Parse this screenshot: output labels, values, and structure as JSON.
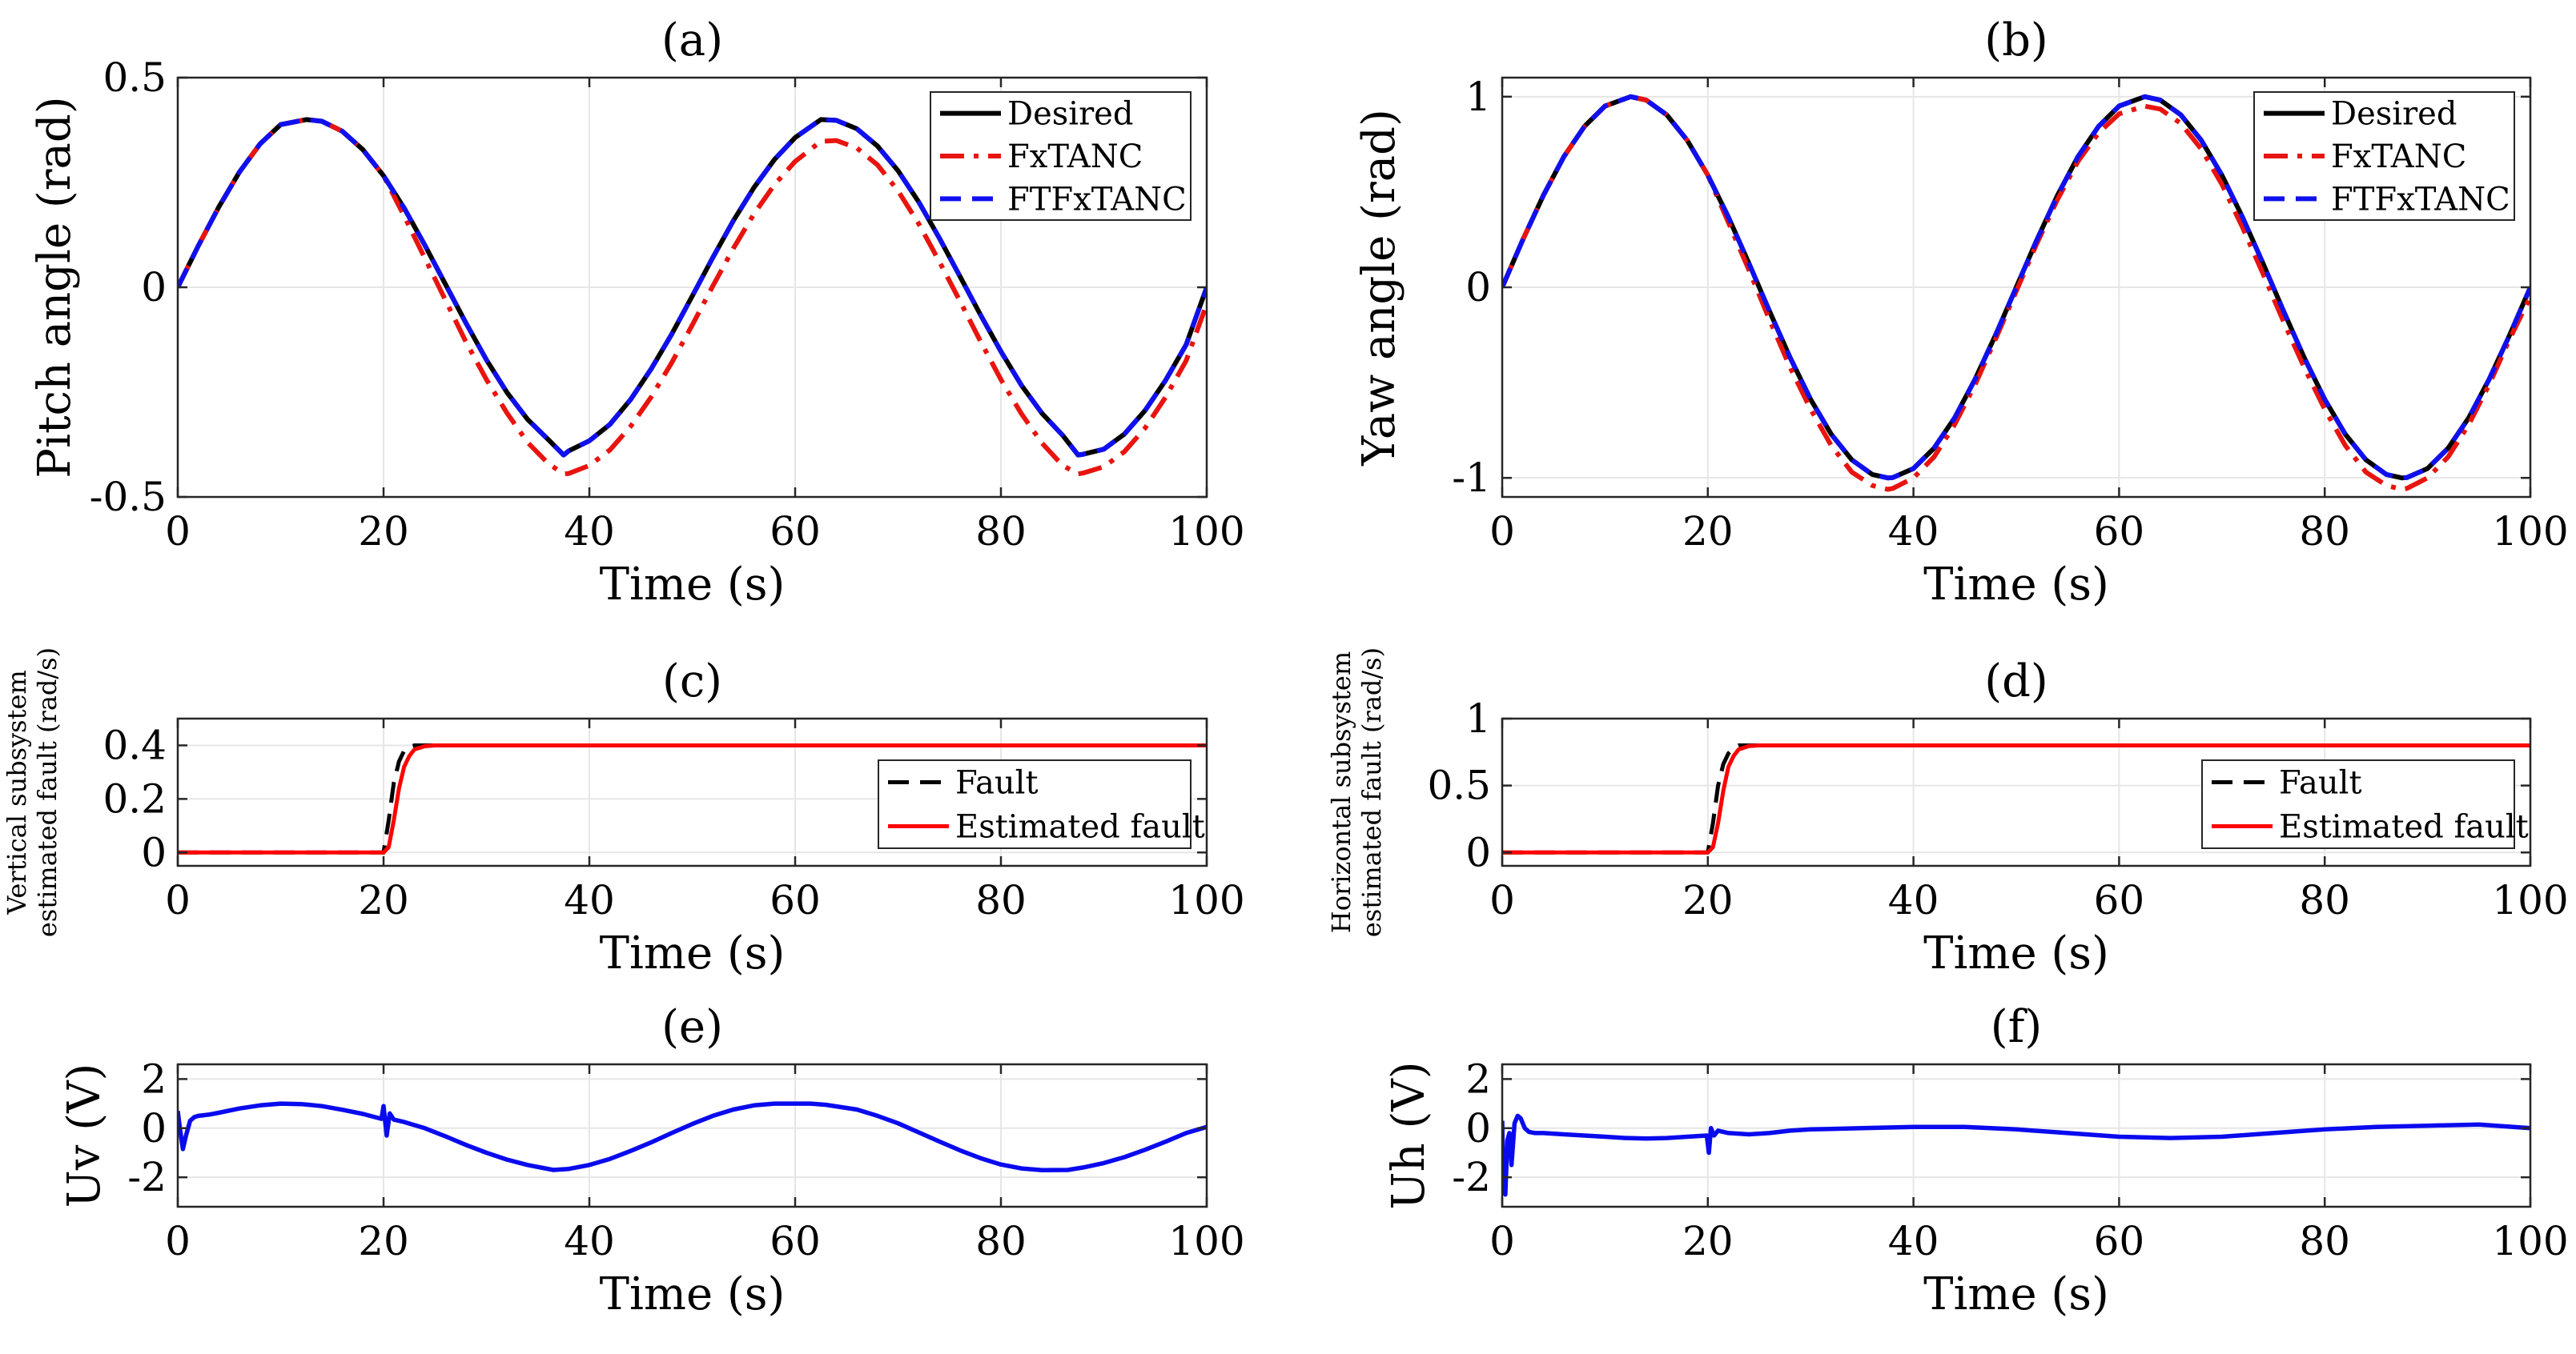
{
  "chart_data": [
    {
      "id": "a",
      "type": "line",
      "title": "(a)",
      "xlabel": "Time (s)",
      "ylabel": "Pitch angle (rad)",
      "xlim": [
        0,
        100
      ],
      "ylim": [
        -0.5,
        0.5
      ],
      "xticks": [
        0,
        20,
        40,
        60,
        80,
        100
      ],
      "xtick_labels": [
        "0",
        "20",
        "40",
        "60",
        "80",
        "100"
      ],
      "yticks": [
        -0.5,
        0,
        0.5
      ],
      "ytick_labels": [
        "-0.5",
        "0",
        "0.5"
      ],
      "grid": true,
      "legend_position": "top-right",
      "x": [
        0,
        2,
        4,
        6,
        8,
        10,
        12.5,
        14,
        16,
        18,
        20,
        22,
        24,
        26,
        28,
        30,
        32,
        34,
        36,
        37.5,
        38,
        40,
        42,
        44,
        46,
        48,
        50,
        52,
        54,
        56,
        58,
        60,
        62.5,
        64,
        66,
        68,
        70,
        72,
        74,
        76,
        78,
        80,
        82,
        84,
        86,
        87.5,
        88,
        90,
        92,
        94,
        96,
        98,
        100
      ],
      "series": [
        {
          "name": "Desired",
          "color": "#000000",
          "dash": "solid",
          "values": [
            0.0,
            0.099,
            0.192,
            0.275,
            0.342,
            0.388,
            0.4,
            0.396,
            0.372,
            0.328,
            0.266,
            0.189,
            0.101,
            0.008,
            -0.085,
            -0.173,
            -0.251,
            -0.315,
            -0.363,
            -0.4,
            -0.39,
            -0.366,
            -0.327,
            -0.268,
            -0.195,
            -0.112,
            -0.021,
            0.071,
            0.159,
            0.238,
            0.305,
            0.357,
            0.4,
            0.398,
            0.378,
            0.337,
            0.278,
            0.204,
            0.118,
            0.027,
            -0.065,
            -0.153,
            -0.234,
            -0.301,
            -0.353,
            -0.4,
            -0.398,
            -0.386,
            -0.35,
            -0.294,
            -0.222,
            -0.137,
            -0.0
          ]
        },
        {
          "name": "FxTANC",
          "color": "#e8140f",
          "dash": "dashdot",
          "values": [
            0.0,
            0.099,
            0.192,
            0.275,
            0.342,
            0.388,
            0.4,
            0.396,
            0.372,
            0.328,
            0.266,
            0.17,
            0.07,
            -0.03,
            -0.13,
            -0.22,
            -0.3,
            -0.37,
            -0.42,
            -0.445,
            -0.444,
            -0.425,
            -0.388,
            -0.332,
            -0.262,
            -0.18,
            -0.09,
            0.003,
            0.093,
            0.175,
            0.245,
            0.3,
            0.348,
            0.35,
            0.332,
            0.292,
            0.23,
            0.152,
            0.062,
            -0.032,
            -0.128,
            -0.22,
            -0.302,
            -0.372,
            -0.425,
            -0.445,
            -0.443,
            -0.428,
            -0.392,
            -0.336,
            -0.262,
            -0.175,
            -0.04
          ]
        },
        {
          "name": "FTFxTANC",
          "color": "#1010ee",
          "dash": "dashed",
          "values": [
            0.0,
            0.099,
            0.192,
            0.275,
            0.342,
            0.388,
            0.4,
            0.396,
            0.372,
            0.328,
            0.266,
            0.189,
            0.101,
            0.008,
            -0.085,
            -0.173,
            -0.251,
            -0.315,
            -0.363,
            -0.4,
            -0.39,
            -0.366,
            -0.327,
            -0.268,
            -0.195,
            -0.112,
            -0.021,
            0.071,
            0.159,
            0.238,
            0.305,
            0.357,
            0.4,
            0.398,
            0.378,
            0.337,
            0.278,
            0.204,
            0.118,
            0.027,
            -0.065,
            -0.153,
            -0.234,
            -0.301,
            -0.353,
            -0.4,
            -0.398,
            -0.386,
            -0.35,
            -0.294,
            -0.222,
            -0.137,
            -0.0
          ]
        }
      ]
    },
    {
      "id": "b",
      "type": "line",
      "title": "(b)",
      "xlabel": "Time (s)",
      "ylabel": "Yaw angle (rad)",
      "xlim": [
        0,
        100
      ],
      "ylim": [
        -1.1,
        1.1
      ],
      "xticks": [
        0,
        20,
        40,
        60,
        80,
        100
      ],
      "xtick_labels": [
        "0",
        "20",
        "40",
        "60",
        "80",
        "100"
      ],
      "yticks": [
        -1,
        0,
        1
      ],
      "ytick_labels": [
        "-1",
        "0",
        "1"
      ],
      "grid": true,
      "legend_position": "top-right",
      "x": [
        0,
        2,
        4,
        6,
        8,
        10,
        12.5,
        14,
        16,
        18,
        20,
        22,
        24,
        26,
        28,
        30,
        32,
        34,
        36,
        37.5,
        38,
        40,
        42,
        44,
        46,
        48,
        50,
        52,
        54,
        56,
        58,
        60,
        62.5,
        64,
        66,
        68,
        70,
        72,
        74,
        76,
        78,
        80,
        82,
        84,
        86,
        87.5,
        88,
        90,
        92,
        94,
        96,
        98,
        100
      ],
      "series": [
        {
          "name": "Desired",
          "color": "#000000",
          "dash": "solid",
          "values": [
            0.0,
            0.249,
            0.482,
            0.685,
            0.844,
            0.951,
            1.0,
            0.982,
            0.905,
            0.771,
            0.588,
            0.368,
            0.125,
            -0.125,
            -0.368,
            -0.588,
            -0.771,
            -0.905,
            -0.982,
            -1.0,
            -0.998,
            -0.951,
            -0.844,
            -0.685,
            -0.482,
            -0.249,
            0.0,
            0.249,
            0.482,
            0.685,
            0.844,
            0.951,
            1.0,
            0.982,
            0.905,
            0.771,
            0.588,
            0.368,
            0.125,
            -0.125,
            -0.368,
            -0.588,
            -0.771,
            -0.905,
            -0.982,
            -1.0,
            -0.998,
            -0.951,
            -0.844,
            -0.685,
            -0.482,
            -0.249,
            0.0
          ]
        },
        {
          "name": "FxTANC",
          "color": "#e8140f",
          "dash": "dashdot",
          "values": [
            0.0,
            0.249,
            0.482,
            0.685,
            0.844,
            0.951,
            1.0,
            0.982,
            0.905,
            0.771,
            0.588,
            0.34,
            0.09,
            -0.17,
            -0.42,
            -0.64,
            -0.83,
            -0.97,
            -1.04,
            -1.06,
            -1.055,
            -1.0,
            -0.89,
            -0.72,
            -0.51,
            -0.27,
            -0.02,
            0.23,
            0.46,
            0.66,
            0.81,
            0.91,
            0.95,
            0.935,
            0.86,
            0.725,
            0.54,
            0.315,
            0.07,
            -0.18,
            -0.42,
            -0.64,
            -0.83,
            -0.97,
            -1.04,
            -1.06,
            -1.055,
            -1.0,
            -0.89,
            -0.72,
            -0.51,
            -0.27,
            -0.05
          ]
        },
        {
          "name": "FTFxTANC",
          "color": "#1010ee",
          "dash": "dashed",
          "values": [
            0.0,
            0.249,
            0.482,
            0.685,
            0.844,
            0.951,
            1.0,
            0.982,
            0.905,
            0.771,
            0.588,
            0.368,
            0.125,
            -0.125,
            -0.368,
            -0.588,
            -0.771,
            -0.905,
            -0.982,
            -1.0,
            -0.998,
            -0.951,
            -0.844,
            -0.685,
            -0.482,
            -0.249,
            0.0,
            0.249,
            0.482,
            0.685,
            0.844,
            0.951,
            1.0,
            0.982,
            0.905,
            0.771,
            0.588,
            0.368,
            0.125,
            -0.125,
            -0.368,
            -0.588,
            -0.771,
            -0.905,
            -0.982,
            -1.0,
            -0.998,
            -0.951,
            -0.844,
            -0.685,
            -0.482,
            -0.249,
            0.0
          ]
        }
      ]
    },
    {
      "id": "c",
      "type": "line",
      "title": "(c)",
      "xlabel": "Time (s)",
      "ylabel_lines": [
        "Vertical subsystem",
        "estimated fault (rad/s)"
      ],
      "xlim": [
        0,
        100
      ],
      "ylim": [
        -0.05,
        0.5
      ],
      "xticks": [
        0,
        20,
        40,
        60,
        80,
        100
      ],
      "xtick_labels": [
        "0",
        "20",
        "40",
        "60",
        "80",
        "100"
      ],
      "yticks": [
        0,
        0.2,
        0.4
      ],
      "ytick_labels": [
        "0",
        "0.2",
        "0.4"
      ],
      "grid": true,
      "legend_position": "bottom-right",
      "series": [
        {
          "name": "Fault",
          "color": "#000000",
          "dash": "dashed",
          "x": [
            0,
            20,
            20.5,
            21,
            21.5,
            22,
            22.5,
            23,
            100
          ],
          "values": [
            0,
            0,
            0.12,
            0.26,
            0.34,
            0.38,
            0.395,
            0.4,
            0.4
          ]
        },
        {
          "name": "Estimated fault",
          "color": "#ff0000",
          "dash": "solid",
          "x": [
            0,
            20,
            20.5,
            21,
            21.5,
            22,
            22.5,
            23,
            24,
            25,
            100
          ],
          "values": [
            0,
            0,
            0.02,
            0.12,
            0.24,
            0.32,
            0.36,
            0.385,
            0.397,
            0.4,
            0.4
          ]
        }
      ]
    },
    {
      "id": "d",
      "type": "line",
      "title": "(d)",
      "xlabel": "Time (s)",
      "ylabel_lines": [
        "Horizontal subsystem",
        "estimated fault (rad/s)"
      ],
      "xlim": [
        0,
        100
      ],
      "ylim": [
        -0.1,
        1.0
      ],
      "xticks": [
        0,
        20,
        40,
        60,
        80,
        100
      ],
      "xtick_labels": [
        "0",
        "20",
        "40",
        "60",
        "80",
        "100"
      ],
      "yticks": [
        0,
        0.5,
        1
      ],
      "ytick_labels": [
        "0",
        "0.5",
        "1"
      ],
      "grid": true,
      "legend_position": "bottom-right",
      "series": [
        {
          "name": "Fault",
          "color": "#000000",
          "dash": "dashed",
          "x": [
            0,
            20,
            20.5,
            21,
            21.5,
            22,
            22.5,
            23,
            100
          ],
          "values": [
            0,
            0,
            0.22,
            0.5,
            0.66,
            0.74,
            0.78,
            0.8,
            0.8
          ]
        },
        {
          "name": "Estimated fault",
          "color": "#ff0000",
          "dash": "solid",
          "x": [
            0,
            20,
            20.5,
            21,
            21.5,
            22,
            22.5,
            23,
            24,
            25,
            100
          ],
          "values": [
            0,
            0,
            0.04,
            0.22,
            0.46,
            0.64,
            0.72,
            0.77,
            0.795,
            0.8,
            0.8
          ]
        }
      ]
    },
    {
      "id": "e",
      "type": "line",
      "title": "(e)",
      "xlabel": "Time (s)",
      "ylabel": "Uv (V)",
      "xlim": [
        0,
        100
      ],
      "ylim": [
        -3.2,
        2.6
      ],
      "xticks": [
        0,
        20,
        40,
        60,
        80,
        100
      ],
      "xtick_labels": [
        "0",
        "20",
        "40",
        "60",
        "80",
        "100"
      ],
      "yticks": [
        -2,
        0,
        2
      ],
      "ytick_labels": [
        "-2",
        "0",
        "2"
      ],
      "grid": true,
      "series": [
        {
          "name": "Uv",
          "color": "#0a0aee",
          "dash": "solid",
          "x": [
            0,
            0.2,
            0.5,
            0.8,
            1.2,
            1.6,
            2.0,
            3,
            4,
            6,
            8,
            10,
            12,
            14,
            16,
            18,
            19.8,
            20.0,
            20.3,
            20.6,
            21,
            22,
            24,
            26,
            28,
            30,
            32,
            34,
            36.5,
            38,
            40,
            42,
            44,
            46,
            48,
            50,
            52,
            54,
            56,
            58,
            60,
            61.5,
            63,
            66,
            68,
            70,
            72,
            74,
            76,
            78,
            80,
            82,
            84,
            86.5,
            88,
            90,
            92,
            94,
            96,
            98,
            100
          ],
          "values": [
            0.7,
            0.0,
            -0.85,
            -0.3,
            0.3,
            0.45,
            0.5,
            0.55,
            0.63,
            0.8,
            0.93,
            1.0,
            0.98,
            0.9,
            0.75,
            0.58,
            0.38,
            0.9,
            -0.3,
            0.6,
            0.35,
            0.25,
            0.0,
            -0.33,
            -0.68,
            -1.0,
            -1.28,
            -1.5,
            -1.7,
            -1.66,
            -1.5,
            -1.25,
            -0.93,
            -0.58,
            -0.2,
            0.17,
            0.5,
            0.76,
            0.93,
            1.0,
            1.0,
            1.0,
            0.95,
            0.76,
            0.5,
            0.2,
            -0.17,
            -0.54,
            -0.9,
            -1.22,
            -1.48,
            -1.64,
            -1.71,
            -1.7,
            -1.6,
            -1.42,
            -1.18,
            -0.88,
            -0.55,
            -0.2,
            0.05
          ]
        }
      ]
    },
    {
      "id": "f",
      "type": "line",
      "title": "(f)",
      "xlabel": "Time (s)",
      "ylabel": "Uh (V)",
      "xlim": [
        0,
        100
      ],
      "ylim": [
        -3.2,
        2.6
      ],
      "xticks": [
        0,
        20,
        40,
        60,
        80,
        100
      ],
      "xtick_labels": [
        "0",
        "20",
        "40",
        "60",
        "80",
        "100"
      ],
      "yticks": [
        -2,
        0,
        2
      ],
      "ytick_labels": [
        "-2",
        "0",
        "2"
      ],
      "grid": true,
      "series": [
        {
          "name": "Uh",
          "color": "#0a0aee",
          "dash": "solid",
          "x": [
            0,
            0.1,
            0.3,
            0.5,
            0.7,
            0.9,
            1.2,
            1.5,
            1.8,
            2.2,
            2.6,
            3.2,
            4,
            6,
            8,
            10,
            12,
            14,
            16,
            18,
            19.9,
            20.1,
            20.3,
            20.6,
            21,
            22,
            24,
            26,
            28,
            30,
            35,
            40,
            45,
            50,
            55,
            60,
            65,
            70,
            75,
            80,
            85,
            90,
            95,
            100
          ],
          "values": [
            0.3,
            -2.5,
            -2.7,
            -0.5,
            -0.2,
            -1.5,
            0.2,
            0.5,
            0.4,
            0.0,
            -0.15,
            -0.2,
            -0.2,
            -0.25,
            -0.3,
            -0.35,
            -0.4,
            -0.42,
            -0.4,
            -0.35,
            -0.3,
            -1.0,
            0.0,
            -0.3,
            -0.1,
            -0.2,
            -0.25,
            -0.2,
            -0.1,
            -0.05,
            0.0,
            0.05,
            0.05,
            -0.05,
            -0.2,
            -0.35,
            -0.4,
            -0.35,
            -0.2,
            -0.05,
            0.05,
            0.1,
            0.15,
            0.0
          ]
        }
      ]
    }
  ]
}
